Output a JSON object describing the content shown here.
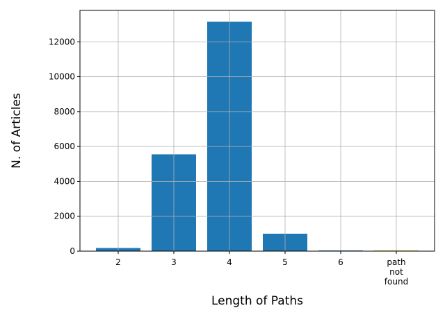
{
  "chart_data": {
    "type": "bar",
    "categories": [
      "2",
      "3",
      "4",
      "5",
      "6",
      "path\nnot\nfound"
    ],
    "values": [
      180,
      5550,
      13150,
      1000,
      5,
      40
    ],
    "bar_colors": [
      "#1f77b4",
      "#1f77b4",
      "#1f77b4",
      "#1f77b4",
      "#1f77b4",
      "#d9b300"
    ],
    "xlabel": "Length of Paths",
    "ylabel": "N. of Articles",
    "ylim": [
      0,
      13800
    ],
    "yticks": [
      0,
      2000,
      4000,
      6000,
      8000,
      10000,
      12000
    ],
    "grid": true
  }
}
